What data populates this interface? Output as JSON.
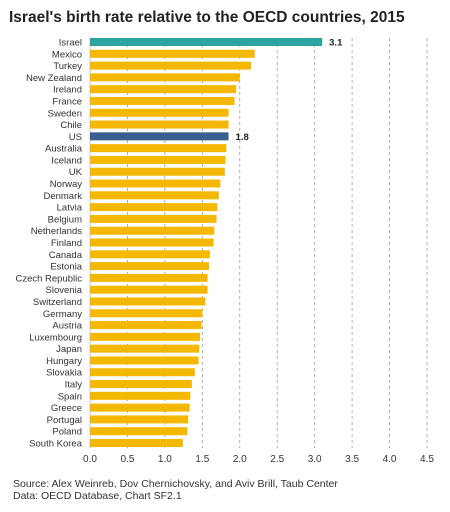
{
  "chart_data": {
    "type": "bar",
    "orientation": "horizontal",
    "title": "Israel's birth rate relative to the OECD countries, 2015",
    "categories": [
      "Israel",
      "Mexico",
      "Turkey",
      "New Zealand",
      "Ireland",
      "France",
      "Sweden",
      "Chile",
      "US",
      "Australia",
      "Iceland",
      "UK",
      "Norway",
      "Denmark",
      "Latvia",
      "Belgium",
      "Netherlands",
      "Finland",
      "Canada",
      "Estonia",
      "Czech Republic",
      "Slovenia",
      "Switzerland",
      "Germany",
      "Austria",
      "Luxembourg",
      "Japan",
      "Hungary",
      "Slovakia",
      "Italy",
      "Spain",
      "Greece",
      "Portugal",
      "Poland",
      "South Korea"
    ],
    "values": [
      3.1,
      2.2,
      2.15,
      2.0,
      1.95,
      1.93,
      1.85,
      1.85,
      1.85,
      1.82,
      1.81,
      1.8,
      1.74,
      1.72,
      1.7,
      1.69,
      1.66,
      1.65,
      1.6,
      1.59,
      1.57,
      1.57,
      1.54,
      1.5,
      1.49,
      1.47,
      1.46,
      1.45,
      1.4,
      1.36,
      1.34,
      1.33,
      1.31,
      1.3,
      1.24
    ],
    "highlights": {
      "Israel": "#2ea3a3",
      "US": "#3a5f8f"
    },
    "default_color": "#f5b800",
    "data_labels": {
      "Israel": "3.1",
      "US": "1.8"
    },
    "xlim": [
      0,
      4.5
    ],
    "xticks": [
      "0.0",
      "0.5",
      "1.0",
      "1.5",
      "2.0",
      "2.5",
      "3.0",
      "3.5",
      "4.0",
      "4.5"
    ],
    "grid": "vertical-dashed",
    "legend": "none"
  },
  "source": {
    "line1": "Source: Alex Weinreb, Dov Chernichovsky, and Aviv Brill, Taub Center",
    "line2": "Data: OECD Database, Chart SF2.1"
  }
}
